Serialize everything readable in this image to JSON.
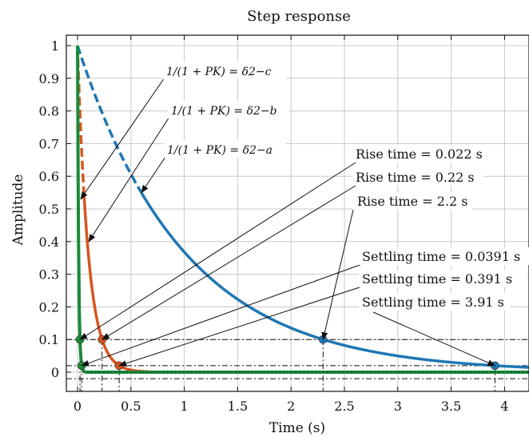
{
  "chart_data": {
    "type": "line",
    "title": "Step response",
    "xlabel": "Time (s)",
    "ylabel": "Amplitude",
    "xlim": [
      -0.1,
      4.25
    ],
    "ylim": [
      -0.06,
      1.03
    ],
    "xticks": [
      "0",
      "0.5",
      "1",
      "1.5",
      "2",
      "2.5",
      "3",
      "3.5",
      "4"
    ],
    "xtick_values": [
      0,
      0.5,
      1,
      1.5,
      2,
      2.5,
      3,
      3.5,
      4
    ],
    "yticks": [
      "0",
      "0.1",
      "0.2",
      "0.3",
      "0.4",
      "0.5",
      "0.6",
      "0.7",
      "0.8",
      "0.9",
      "1"
    ],
    "ytick_values": [
      0,
      0.1,
      0.2,
      0.3,
      0.4,
      0.5,
      0.6,
      0.7,
      0.8,
      0.9,
      1
    ],
    "grid": true,
    "series": [
      {
        "tau": 1.0,
        "t_end": 4.25,
        "color": "#1f77b4",
        "dashed_until": 0.6
      },
      {
        "tau": 0.1,
        "t_end": 1.05,
        "color": "#d9541e",
        "dashed_until": 0.06
      },
      {
        "tau": 0.01,
        "t_end": 4.25,
        "color": "#1a8a3a",
        "dashed_until": 0
      }
    ],
    "markers": [
      {
        "x": 2.3,
        "y": 0.1,
        "series": 0
      },
      {
        "x": 3.91,
        "y": 0.02,
        "series": 0
      },
      {
        "x": 0.23,
        "y": 0.1,
        "series": 1
      },
      {
        "x": 0.39,
        "y": 0.02,
        "series": 1
      },
      {
        "x": 0.023,
        "y": 0.1,
        "series": 2
      },
      {
        "x": 0.039,
        "y": 0.02,
        "series": 2
      }
    ],
    "ref_lines_y": [
      0.1,
      0.02,
      -0.02
    ],
    "annotations": {
      "rise_times": [
        "Rise time = 0.022 s",
        "Rise time = 0.22 s",
        "Rise time = 2.2 s"
      ],
      "settling_times": [
        "Settling time = 0.0391 s",
        "Settling time = 0.391 s",
        "Settling time = 3.91 s"
      ],
      "sensitivity": [
        "1/(1 + PK) = δ2−c",
        "1/(1 + PK) = δ2−b",
        "1/(1 + PK) = δ2−a"
      ]
    }
  }
}
